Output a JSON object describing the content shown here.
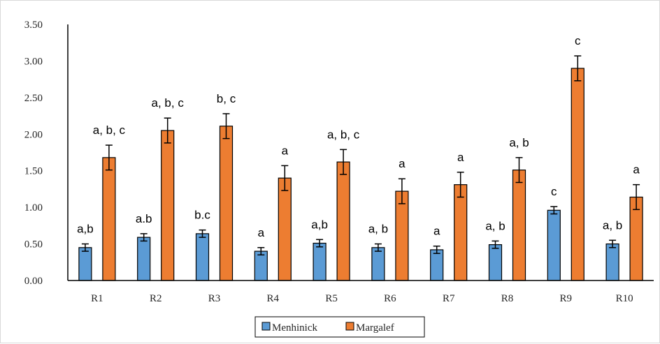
{
  "chart_data": {
    "type": "bar",
    "title": "",
    "xlabel": "",
    "ylabel": "",
    "ylim": [
      0,
      3.5
    ],
    "yticks": [
      "0.00",
      "0.50",
      "1.00",
      "1.50",
      "2.00",
      "2.50",
      "3.00",
      "3.50"
    ],
    "categories": [
      "R1",
      "R2",
      "R3",
      "R4",
      "R5",
      "R6",
      "R7",
      "R8",
      "R9",
      "R10"
    ],
    "grid": false,
    "legend_position": "bottom",
    "series": [
      {
        "name": "Menhinick",
        "color": "#5b9bd5",
        "values": [
          0.45,
          0.59,
          0.64,
          0.4,
          0.51,
          0.45,
          0.42,
          0.49,
          0.96,
          0.5
        ],
        "errors": [
          0.05,
          0.05,
          0.05,
          0.05,
          0.05,
          0.05,
          0.05,
          0.05,
          0.05,
          0.05
        ],
        "labels": [
          "a,b",
          "a.b",
          "b.c",
          "a",
          "a,b",
          "a, b",
          "a",
          "a, b",
          "c",
          "a, b"
        ]
      },
      {
        "name": "Margalef",
        "color": "#ed7d31",
        "values": [
          1.68,
          2.05,
          2.11,
          1.4,
          1.62,
          1.22,
          1.31,
          1.51,
          2.9,
          1.14
        ],
        "errors": [
          0.17,
          0.17,
          0.17,
          0.17,
          0.17,
          0.17,
          0.17,
          0.17,
          0.17,
          0.17
        ],
        "labels": [
          "a, b, c",
          "a, b, c",
          "b, c",
          "a",
          "a, b, c",
          "a",
          "a",
          "a, b",
          "c",
          "a"
        ]
      }
    ]
  }
}
